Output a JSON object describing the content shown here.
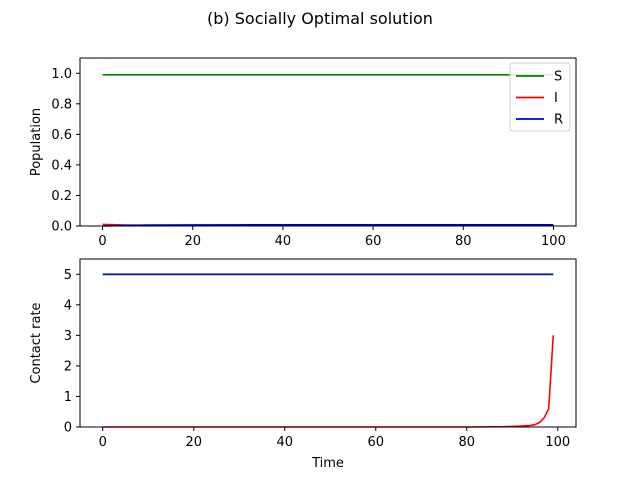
{
  "title": "(b) Socially Optimal solution",
  "chart_data": [
    {
      "type": "line",
      "ylabel": "Population",
      "xlabel": "",
      "xlim": [
        -5,
        105
      ],
      "ylim": [
        0,
        1.1
      ],
      "xticks": [
        0,
        20,
        40,
        60,
        80,
        100
      ],
      "xtick_labels": [
        "0",
        "20",
        "40",
        "60",
        "80",
        "100"
      ],
      "yticks": [
        0,
        0.2,
        0.4,
        0.6,
        0.8,
        1.0
      ],
      "ytick_labels": [
        "0.0",
        "0.2",
        "0.4",
        "0.6",
        "0.8",
        "1.0"
      ],
      "legend_position": "top-right",
      "series": [
        {
          "name": "S",
          "color": "#008000",
          "x": [
            0,
            10,
            20,
            40,
            60,
            80,
            100
          ],
          "y": [
            0.99,
            0.99,
            0.99,
            0.99,
            0.99,
            0.99,
            0.99
          ]
        },
        {
          "name": "I",
          "color": "#ff0000",
          "x": [
            0,
            5,
            10,
            20,
            40,
            60,
            80,
            100
          ],
          "y": [
            0.01,
            0.006,
            0.004,
            0.003,
            0.002,
            0.002,
            0.002,
            0.002
          ]
        },
        {
          "name": "R",
          "color": "#0000cc",
          "x": [
            0,
            5,
            10,
            20,
            40,
            60,
            80,
            100
          ],
          "y": [
            0.0,
            0.004,
            0.006,
            0.007,
            0.008,
            0.008,
            0.008,
            0.008
          ]
        }
      ]
    },
    {
      "type": "line",
      "ylabel": "Contact rate",
      "xlabel": "Time",
      "xlim": [
        -5,
        104
      ],
      "ylim": [
        0,
        5.5
      ],
      "xticks": [
        0,
        20,
        40,
        60,
        80,
        100
      ],
      "xtick_labels": [
        "0",
        "20",
        "40",
        "60",
        "80",
        "100"
      ],
      "yticks": [
        0,
        1,
        2,
        3,
        4,
        5
      ],
      "ytick_labels": [
        "0",
        "1",
        "2",
        "3",
        "4",
        "5"
      ],
      "series": [
        {
          "color": "#008000",
          "x": [
            0,
            99
          ],
          "y": [
            5,
            5
          ]
        },
        {
          "color": "#0000cc",
          "x": [
            0,
            99
          ],
          "y": [
            5,
            5
          ]
        },
        {
          "color": "#ff0000",
          "x": [
            0,
            20,
            40,
            60,
            80,
            88,
            92,
            94,
            95,
            96,
            97,
            98,
            99
          ],
          "y": [
            0.0,
            0.0,
            0.0,
            0.0,
            0.0,
            0.01,
            0.03,
            0.05,
            0.08,
            0.15,
            0.3,
            0.6,
            3.0
          ]
        }
      ]
    }
  ]
}
